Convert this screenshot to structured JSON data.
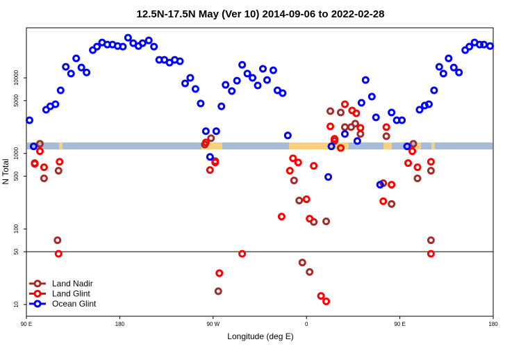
{
  "chart_data": {
    "type": "scatter",
    "title": "12.5N-17.5N May (Ver 10)   2014-09-06 to 2022-02-28",
    "x_label": "Longitude (deg E)",
    "y_label": "N Total",
    "y_scale": "log",
    "xlim": [
      90,
      540
    ],
    "ylim": [
      7,
      46000
    ],
    "xticks": [
      {
        "value": 90,
        "label": "90 E"
      },
      180,
      {
        "value": 270,
        "label": "90 W"
      },
      {
        "value": 360,
        "label": "0"
      },
      {
        "value": 450,
        "label": "90 E"
      },
      {
        "value": 540,
        "label": "180"
      }
    ],
    "yticks": [
      10,
      50,
      100,
      500,
      1000,
      5000,
      10000
    ],
    "hline": 50,
    "legend": "bottom-left",
    "series": [
      {
        "name": "Land Nadir",
        "color": "#a52a2a",
        "x": [
          98,
          103,
          107,
          121,
          120,
          262,
          268,
          272,
          275,
          348,
          353,
          356,
          363,
          367,
          379,
          383,
          387,
          393,
          397,
          403,
          407,
          412,
          434,
          437,
          442,
          463,
          467,
          480,
          480
        ],
        "values": [
          745,
          1340,
          468,
          590,
          71,
          1310,
          1590,
          793,
          15,
          439,
          238,
          36,
          27,
          124,
          126,
          3630,
          1460,
          3480,
          2230,
          2230,
          2480,
          1810,
          404,
          1690,
          214,
          1340,
          468,
          590,
          71
        ]
      },
      {
        "name": "Land Glint",
        "color": "#ff0000",
        "x": [
          98,
          103,
          107,
          121,
          122,
          263,
          267,
          272,
          276,
          298,
          336,
          344,
          347,
          352,
          360,
          363,
          367,
          374,
          379,
          383,
          387,
          393,
          397,
          404,
          408,
          412,
          434,
          437,
          442,
          458,
          462,
          467,
          480,
          480
        ],
        "values": [
          728,
          1070,
          656,
          47,
          776,
          1400,
          603,
          760,
          26,
          47,
          146,
          590,
          863,
          760,
          248,
          137,
          684,
          13,
          11,
          2280,
          1560,
          1180,
          4480,
          3700,
          3400,
          2180,
          233,
          2230,
          386,
          745,
          1070,
          656,
          776,
          47
        ]
      },
      {
        "name": "Ocean Glint",
        "color": "#0000ff",
        "x": [
          93,
          97,
          109,
          113,
          118,
          123,
          128,
          133,
          138,
          143,
          148,
          154,
          158,
          163,
          168,
          173,
          178,
          183,
          188,
          193,
          198,
          202,
          208,
          213,
          218,
          223,
          228,
          233,
          238,
          243,
          248,
          253,
          258,
          263,
          267,
          273,
          278,
          282,
          288,
          293,
          298,
          303,
          308,
          313,
          318,
          322,
          328,
          332,
          337,
          342,
          381,
          384,
          397,
          409,
          413,
          417,
          423,
          427,
          431,
          442,
          447,
          452,
          457,
          469,
          474,
          478,
          483,
          488,
          492,
          497,
          502,
          507,
          513,
          517,
          522,
          527,
          531,
          537
        ],
        "values": [
          2750,
          1240,
          3790,
          4200,
          4480,
          6840,
          14000,
          11400,
          18100,
          13700,
          11800,
          23300,
          25900,
          29400,
          27600,
          27600,
          26400,
          25900,
          34000,
          28800,
          26400,
          28800,
          31300,
          25900,
          17300,
          17300,
          15900,
          17300,
          16600,
          8450,
          10000,
          7130,
          4580,
          1970,
          900,
          1970,
          4200,
          8090,
          6700,
          9180,
          14900,
          11400,
          10000,
          7930,
          13200,
          9370,
          12600,
          6840,
          6280,
          1730,
          488,
          1240,
          1810,
          1460,
          4680,
          9370,
          5650,
          3000,
          386,
          3480,
          2750,
          2750,
          1240,
          3790,
          4300,
          4480,
          6840,
          14000,
          11400,
          18100,
          13700,
          11800,
          23300,
          25900,
          29400,
          27600,
          27600,
          26400
        ]
      }
    ]
  }
}
